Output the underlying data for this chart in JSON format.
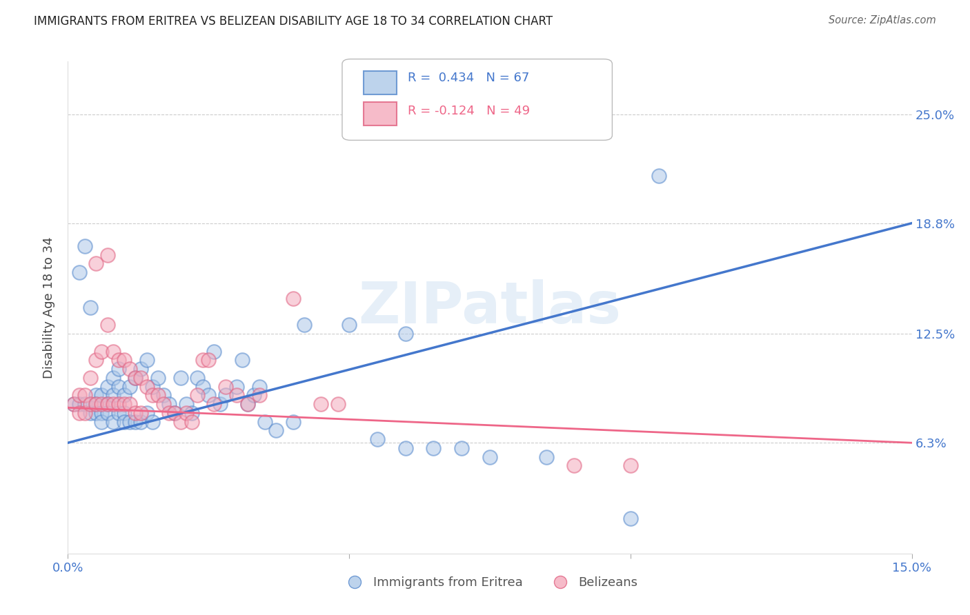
{
  "title": "IMMIGRANTS FROM ERITREA VS BELIZEAN DISABILITY AGE 18 TO 34 CORRELATION CHART",
  "source": "Source: ZipAtlas.com",
  "ylabel": "Disability Age 18 to 34",
  "xlim": [
    0.0,
    0.15
  ],
  "ylim": [
    0.0,
    0.28
  ],
  "xtick_positions": [
    0.0,
    0.05,
    0.1,
    0.15
  ],
  "xtick_labels": [
    "0.0%",
    "",
    "",
    "15.0%"
  ],
  "ytick_positions": [
    0.063,
    0.125,
    0.188,
    0.25
  ],
  "ytick_labels": [
    "6.3%",
    "12.5%",
    "18.8%",
    "25.0%"
  ],
  "blue_R": "0.434",
  "blue_N": "67",
  "pink_R": "-0.124",
  "pink_N": "49",
  "blue_fill": "#adc8e8",
  "blue_edge": "#5588cc",
  "pink_fill": "#f4aabc",
  "pink_edge": "#e06080",
  "blue_line": "#4477cc",
  "pink_line": "#ee6688",
  "watermark": "ZIPatlas",
  "legend_label_blue": "Immigrants from Eritrea",
  "legend_label_pink": "Belizeans",
  "blue_scatter_x": [
    0.001,
    0.002,
    0.002,
    0.003,
    0.003,
    0.004,
    0.004,
    0.005,
    0.005,
    0.005,
    0.006,
    0.006,
    0.006,
    0.007,
    0.007,
    0.007,
    0.008,
    0.008,
    0.008,
    0.009,
    0.009,
    0.009,
    0.01,
    0.01,
    0.01,
    0.011,
    0.011,
    0.012,
    0.012,
    0.013,
    0.013,
    0.014,
    0.014,
    0.015,
    0.015,
    0.016,
    0.017,
    0.018,
    0.019,
    0.02,
    0.021,
    0.022,
    0.023,
    0.024,
    0.025,
    0.026,
    0.027,
    0.028,
    0.03,
    0.031,
    0.032,
    0.033,
    0.034,
    0.035,
    0.037,
    0.04,
    0.042,
    0.05,
    0.055,
    0.06,
    0.065,
    0.07,
    0.075,
    0.085,
    0.1,
    0.105,
    0.06
  ],
  "blue_scatter_y": [
    0.085,
    0.16,
    0.085,
    0.175,
    0.085,
    0.14,
    0.08,
    0.09,
    0.085,
    0.08,
    0.09,
    0.08,
    0.075,
    0.095,
    0.085,
    0.08,
    0.1,
    0.09,
    0.075,
    0.105,
    0.095,
    0.08,
    0.09,
    0.08,
    0.075,
    0.095,
    0.075,
    0.1,
    0.075,
    0.105,
    0.075,
    0.11,
    0.08,
    0.095,
    0.075,
    0.1,
    0.09,
    0.085,
    0.08,
    0.1,
    0.085,
    0.08,
    0.1,
    0.095,
    0.09,
    0.115,
    0.085,
    0.09,
    0.095,
    0.11,
    0.085,
    0.09,
    0.095,
    0.075,
    0.07,
    0.075,
    0.13,
    0.13,
    0.065,
    0.06,
    0.06,
    0.06,
    0.055,
    0.055,
    0.02,
    0.215,
    0.125
  ],
  "pink_scatter_x": [
    0.001,
    0.002,
    0.002,
    0.003,
    0.003,
    0.004,
    0.004,
    0.005,
    0.005,
    0.006,
    0.006,
    0.007,
    0.007,
    0.008,
    0.008,
    0.009,
    0.009,
    0.01,
    0.01,
    0.011,
    0.011,
    0.012,
    0.012,
    0.013,
    0.013,
    0.014,
    0.015,
    0.016,
    0.017,
    0.018,
    0.019,
    0.02,
    0.021,
    0.022,
    0.023,
    0.024,
    0.025,
    0.026,
    0.028,
    0.03,
    0.032,
    0.034,
    0.04,
    0.045,
    0.048,
    0.09,
    0.1,
    0.005,
    0.007
  ],
  "pink_scatter_y": [
    0.085,
    0.08,
    0.09,
    0.09,
    0.08,
    0.1,
    0.085,
    0.11,
    0.085,
    0.115,
    0.085,
    0.13,
    0.085,
    0.115,
    0.085,
    0.11,
    0.085,
    0.11,
    0.085,
    0.105,
    0.085,
    0.1,
    0.08,
    0.1,
    0.08,
    0.095,
    0.09,
    0.09,
    0.085,
    0.08,
    0.08,
    0.075,
    0.08,
    0.075,
    0.09,
    0.11,
    0.11,
    0.085,
    0.095,
    0.09,
    0.085,
    0.09,
    0.145,
    0.085,
    0.085,
    0.05,
    0.05,
    0.165,
    0.17
  ],
  "blue_trend_x": [
    0.0,
    0.15
  ],
  "blue_trend_y": [
    0.063,
    0.188
  ],
  "pink_trend_x": [
    0.0,
    0.15
  ],
  "pink_trend_y": [
    0.083,
    0.063
  ],
  "background_color": "#ffffff",
  "grid_color": "#cccccc"
}
